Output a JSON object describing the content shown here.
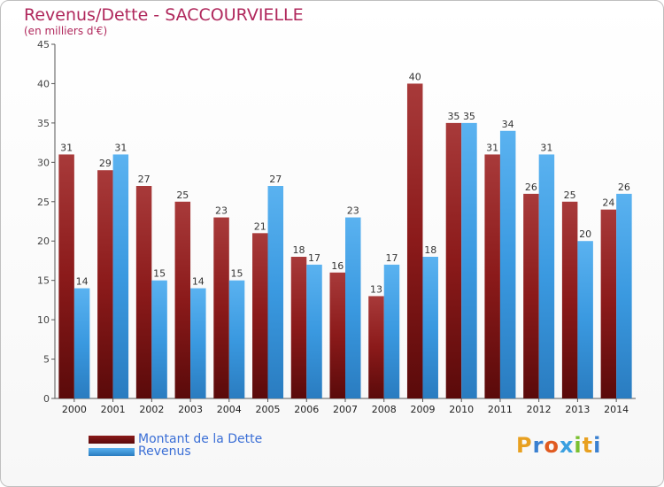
{
  "chart_data": {
    "type": "bar",
    "title": "Revenus/Dette - SACCOURVIELLE",
    "subtitle": "(en milliers d'€)",
    "categories": [
      "2000",
      "2001",
      "2002",
      "2003",
      "2004",
      "2005",
      "2006",
      "2007",
      "2008",
      "2009",
      "2010",
      "2011",
      "2012",
      "2013",
      "2014"
    ],
    "series": [
      {
        "name": "Montant de la Dette",
        "color": "#8b1a1a",
        "values": [
          31,
          29,
          27,
          25,
          23,
          21,
          18,
          16,
          13,
          40,
          35,
          31,
          26,
          25,
          24
        ]
      },
      {
        "name": "Revenus",
        "color": "#3a99e0",
        "values": [
          14,
          31,
          15,
          14,
          15,
          27,
          17,
          23,
          17,
          18,
          35,
          34,
          31,
          20,
          26
        ]
      }
    ],
    "ylim": [
      0,
      45
    ],
    "yticks": [
      0,
      5,
      10,
      15,
      20,
      25,
      30,
      35,
      40,
      45
    ],
    "grid": false,
    "legend_position": "bottom-left"
  },
  "logo": {
    "letters": [
      "P",
      "r",
      "o",
      "x",
      "i",
      "t",
      "i"
    ],
    "colors": [
      "#e8a020",
      "#3a80d0",
      "#e05a20",
      "#3aa0e0",
      "#7ac030",
      "#e8a020",
      "#3a80d0"
    ]
  }
}
